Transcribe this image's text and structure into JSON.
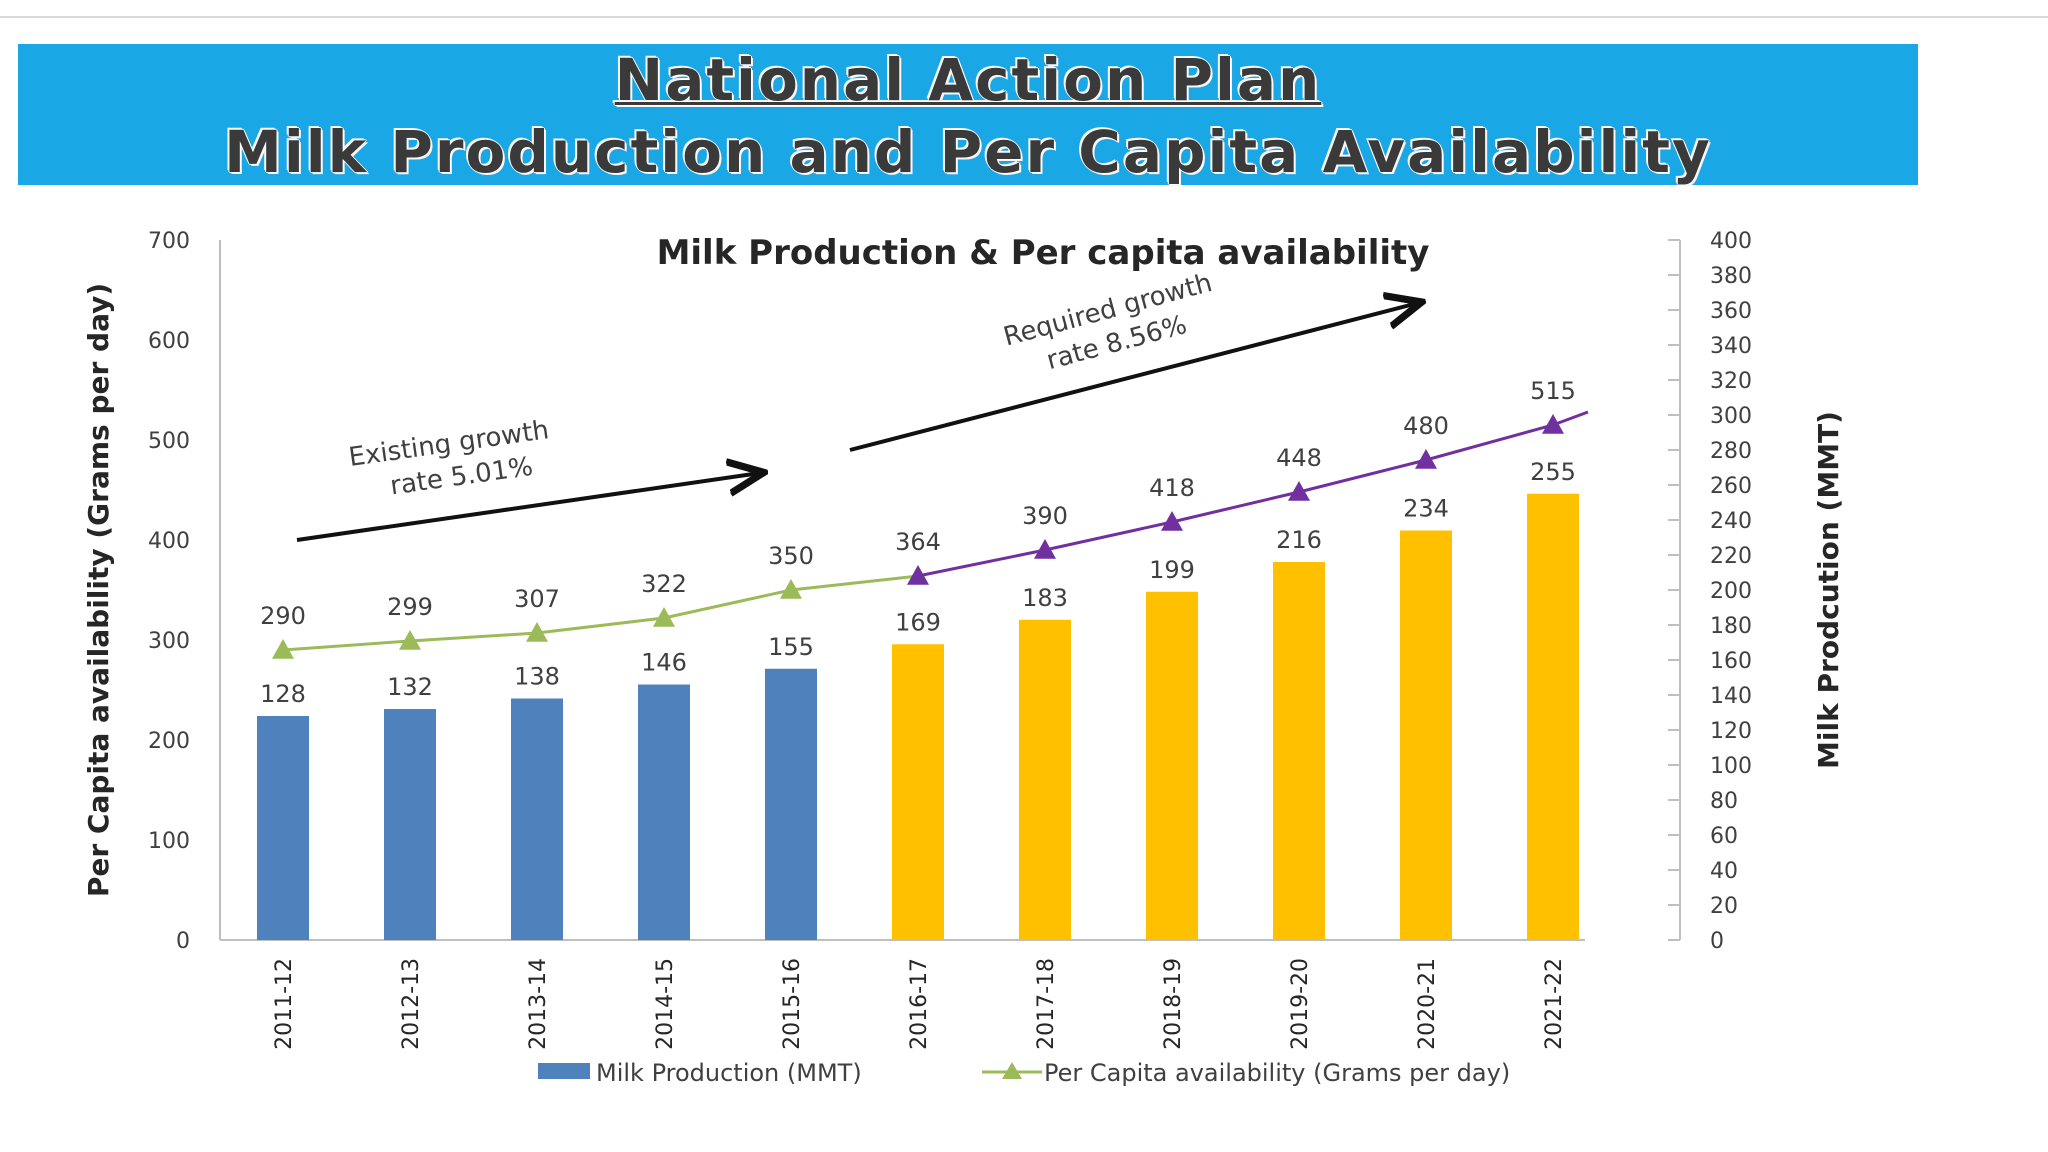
{
  "banner": {
    "line1": "National Action Plan",
    "line2": "Milk Production and Per Capita Availability",
    "color": "#1aa7e6"
  },
  "chart_data": {
    "type": "bar",
    "title": "Milk Production & Per capita availability",
    "categories": [
      "2011-12",
      "2012-13",
      "2013-14",
      "2014-15",
      "2015-16",
      "2016-17",
      "2017-18",
      "2018-19",
      "2019-20",
      "2020-21",
      "2021-22"
    ],
    "y_left": {
      "label": "Per Capita availability (Grams per day)",
      "range": [
        0,
        700
      ],
      "ticks": [
        0,
        100,
        200,
        300,
        400,
        500,
        600,
        700
      ]
    },
    "y_right": {
      "label": "Milk Prodcution (MMT)",
      "range": [
        0,
        400
      ],
      "ticks": [
        0,
        20,
        40,
        60,
        80,
        100,
        120,
        140,
        160,
        180,
        200,
        220,
        240,
        260,
        280,
        300,
        320,
        340,
        360,
        380,
        400
      ]
    },
    "series": [
      {
        "name": "Milk Production (MMT)",
        "kind": "bar",
        "axis": "right",
        "values": [
          128,
          132,
          138,
          146,
          155,
          169,
          183,
          199,
          216,
          234,
          255
        ],
        "color_actual": "#4f81bd",
        "color_projected": "#ffc000",
        "projected_from_index": 5
      },
      {
        "name": "Per Capita availability (Grams per day)",
        "kind": "line",
        "axis": "left",
        "values": [
          290,
          299,
          307,
          322,
          350,
          364,
          390,
          418,
          448,
          480,
          515
        ],
        "color_actual": "#9bbb59",
        "color_projected": "#7030a0",
        "projected_from_index": 5
      }
    ],
    "annotations": [
      {
        "text_line1": "Existing growth",
        "text_line2": "rate 5.01%"
      },
      {
        "text_line1": "Required growth",
        "text_line2": "rate 8.56%"
      }
    ],
    "legend": {
      "position": "bottom"
    },
    "grid": false
  }
}
